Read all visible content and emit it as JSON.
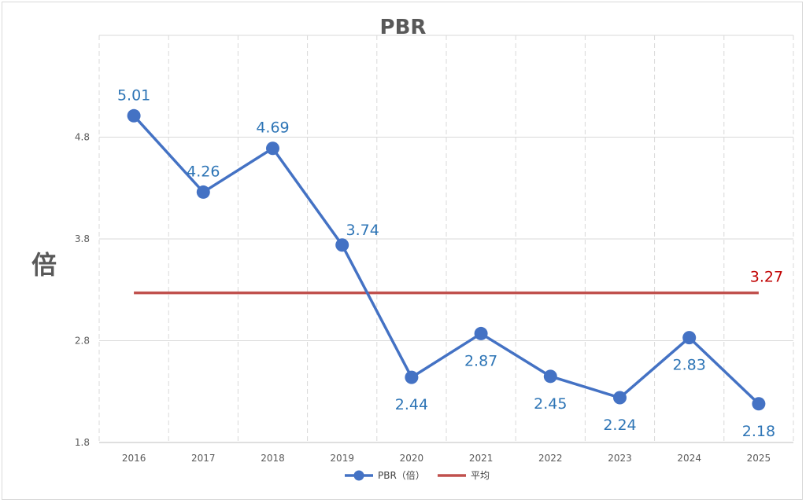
{
  "chart_data": {
    "type": "line",
    "title": "PBR",
    "ylabel": "倍",
    "xlabel": "",
    "categories": [
      "2016",
      "2017",
      "2018",
      "2019",
      "2020",
      "2021",
      "2022",
      "2023",
      "2024",
      "2025"
    ],
    "series": [
      {
        "name": "PBR（倍）",
        "values": [
          5.01,
          4.26,
          4.69,
          3.74,
          2.44,
          2.87,
          2.45,
          2.24,
          2.83,
          2.18
        ],
        "labels": [
          "5.01",
          "4.26",
          "4.69",
          "3.74",
          "2.44",
          "2.87",
          "2.45",
          "2.24",
          "2.83",
          "2.18"
        ],
        "color": "#4472c4",
        "label_color": "#2e75b6"
      },
      {
        "name": "平均",
        "values": [
          3.27,
          3.27,
          3.27,
          3.27,
          3.27,
          3.27,
          3.27,
          3.27,
          3.27,
          3.27
        ],
        "end_label": "3.27",
        "color": "#c0504d",
        "label_color": "#c00000"
      }
    ],
    "ylim": [
      1.8,
      5.8
    ],
    "yticks": [
      "1.8",
      "2.8",
      "3.8",
      "4.8"
    ],
    "grid": true,
    "legend": "bottom"
  }
}
